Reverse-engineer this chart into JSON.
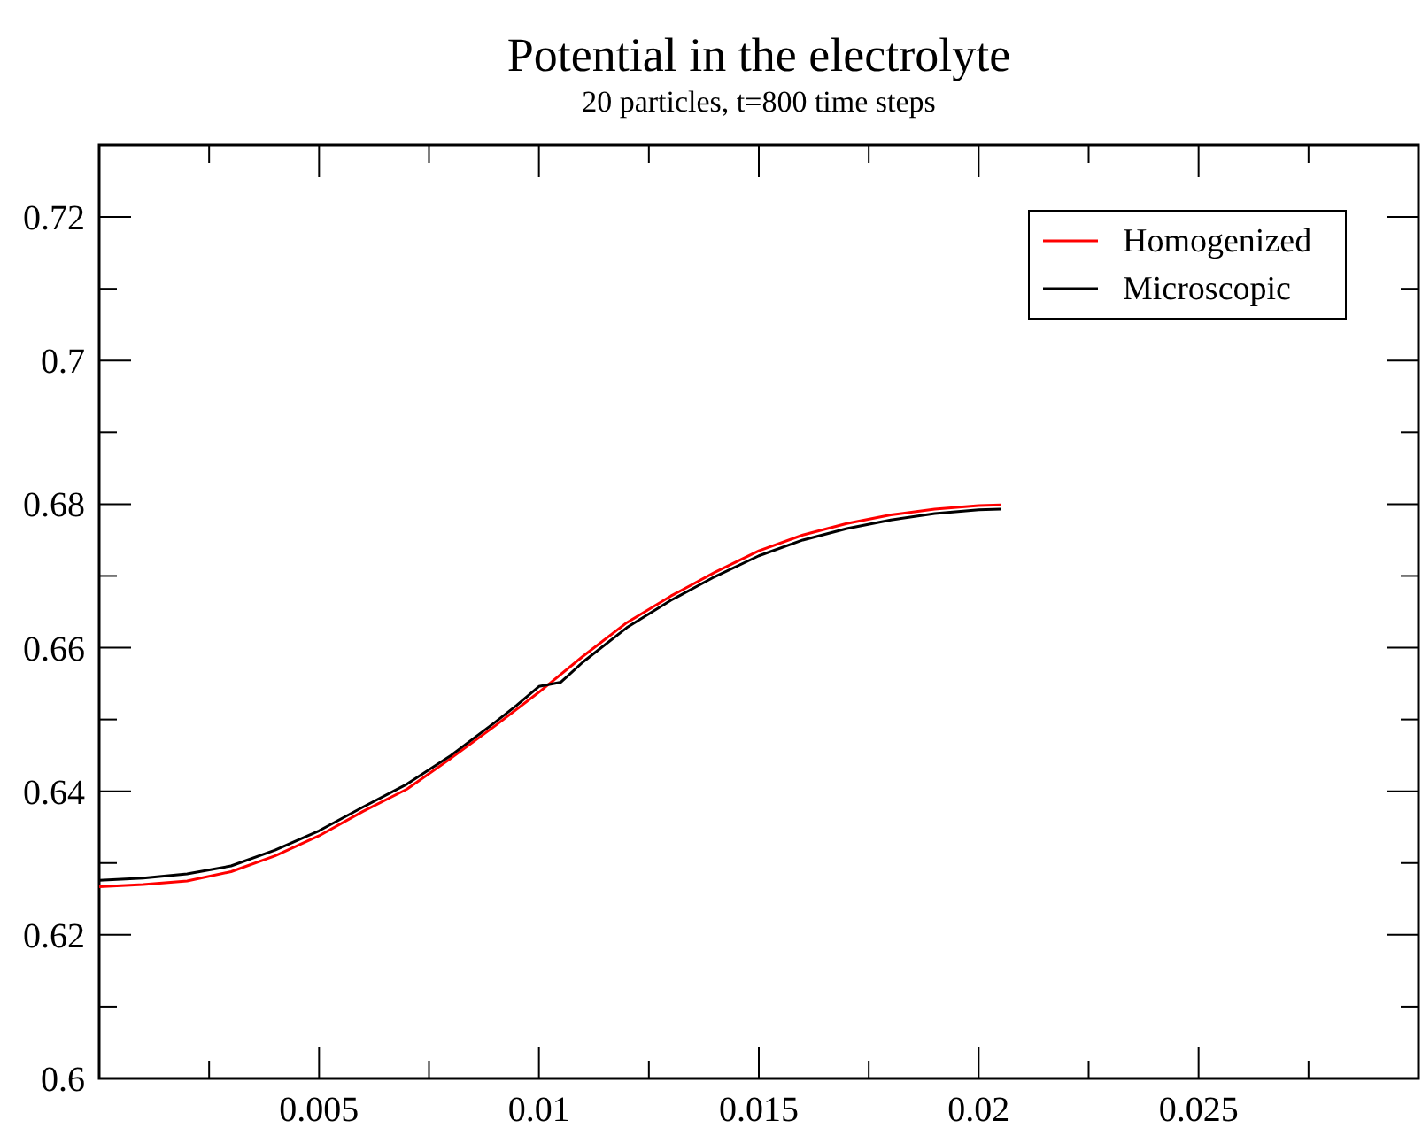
{
  "chart_data": {
    "type": "line",
    "title": "Potential in the electrolyte",
    "subtitle": "20 particles, t=800  time steps",
    "xlim": [
      0,
      0.03
    ],
    "ylim": [
      0.6,
      0.73
    ],
    "xticks": [
      {
        "value": 0.0025,
        "label": null
      },
      0.005,
      {
        "value": 0.0075,
        "label": null
      },
      0.01,
      {
        "value": 0.0125,
        "label": null
      },
      0.015,
      {
        "value": 0.0175,
        "label": null
      },
      0.02,
      {
        "value": 0.0225,
        "label": null
      },
      0.025,
      {
        "value": 0.0275,
        "label": null
      }
    ],
    "yticks": [
      0.6,
      {
        "value": 0.61,
        "label": null
      },
      0.62,
      {
        "value": 0.63,
        "label": null
      },
      0.64,
      {
        "value": 0.65,
        "label": null
      },
      0.66,
      {
        "value": 0.67,
        "label": null
      },
      0.68,
      {
        "value": 0.69,
        "label": null
      },
      0.7,
      {
        "value": 0.71,
        "label": null
      },
      0.72
    ],
    "legend": "top right",
    "grid": false,
    "marker": "none",
    "line_style": "solid",
    "series": [
      {
        "name": "Homogenized",
        "color": "#ff0000",
        "x": [
          0,
          0.001,
          0.002,
          0.003,
          0.004,
          0.005,
          0.006,
          0.007,
          0.008,
          0.009,
          0.01,
          0.011,
          0.012,
          0.013,
          0.014,
          0.015,
          0.016,
          0.017,
          0.018,
          0.019,
          0.02,
          0.0205
        ],
        "values": [
          0.6267,
          0.627,
          0.6275,
          0.6288,
          0.631,
          0.6338,
          0.6372,
          0.6403,
          0.6446,
          0.6491,
          0.6538,
          0.6588,
          0.6635,
          0.6672,
          0.6705,
          0.6735,
          0.6757,
          0.6773,
          0.6785,
          0.6793,
          0.6798,
          0.6799
        ]
      },
      {
        "name": "Microscopic",
        "color": "#000000",
        "x": [
          0,
          0.001,
          0.002,
          0.003,
          0.004,
          0.005,
          0.006,
          0.007,
          0.008,
          0.009,
          0.0095,
          0.01,
          0.0105,
          0.011,
          0.012,
          0.013,
          0.014,
          0.015,
          0.016,
          0.017,
          0.018,
          0.019,
          0.02,
          0.0205
        ],
        "values": [
          0.6276,
          0.6279,
          0.6285,
          0.6296,
          0.6318,
          0.6345,
          0.6378,
          0.641,
          0.645,
          0.6496,
          0.652,
          0.6546,
          0.6552,
          0.658,
          0.6628,
          0.6666,
          0.6699,
          0.6728,
          0.675,
          0.6766,
          0.6778,
          0.6787,
          0.6792,
          0.6793
        ]
      }
    ]
  }
}
